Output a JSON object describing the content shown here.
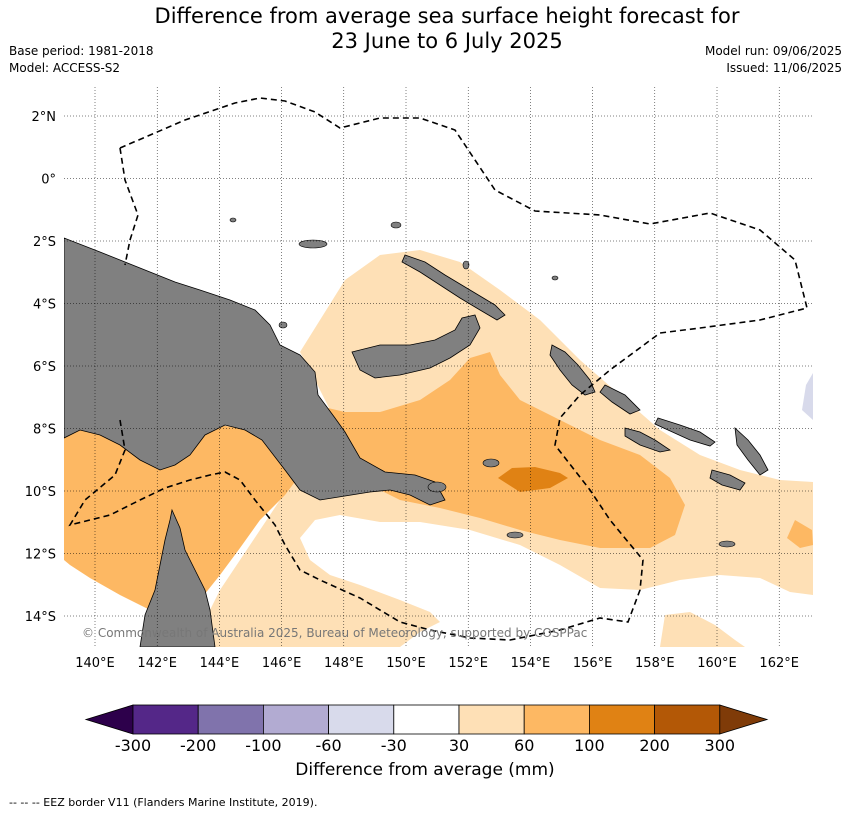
{
  "title_line1": "Difference from average sea surface height forecast for",
  "title_line2": "23 June to 6 July 2025",
  "base_period": "Base period: 1981-2018",
  "model": "Model: ACCESS-S2",
  "model_run": "Model run: 09/06/2025",
  "issued": "Issued: 11/06/2025",
  "map": {
    "lat_labels": [
      "2°N",
      "0°",
      "2°S",
      "4°S",
      "6°S",
      "8°S",
      "10°S",
      "12°S",
      "14°S"
    ],
    "lon_labels": [
      "140°E",
      "142°E",
      "144°E",
      "146°E",
      "148°E",
      "150°E",
      "152°E",
      "154°E",
      "156°E",
      "158°E",
      "160°E",
      "162°E"
    ],
    "copyright": "© Commonwealth of Australia 2025, Bureau of Meteorology, supported by COSPPac",
    "land_color": "#808080"
  },
  "colorbar": {
    "label": "Difference from average (mm)",
    "ticks": [
      "-300",
      "-200",
      "-100",
      "-60",
      "-30",
      "30",
      "60",
      "100",
      "200",
      "300"
    ],
    "colors": [
      "#2d004b",
      "#542788",
      "#8073ac",
      "#b2abd2",
      "#d8daeb",
      "#ffffff",
      "#fee0b6",
      "#fdb863",
      "#e08214",
      "#b35806",
      "#7f3b08"
    ]
  },
  "footnote": "--  --  -- EEZ border V11 (Flanders Marine Institute, 2019)."
}
